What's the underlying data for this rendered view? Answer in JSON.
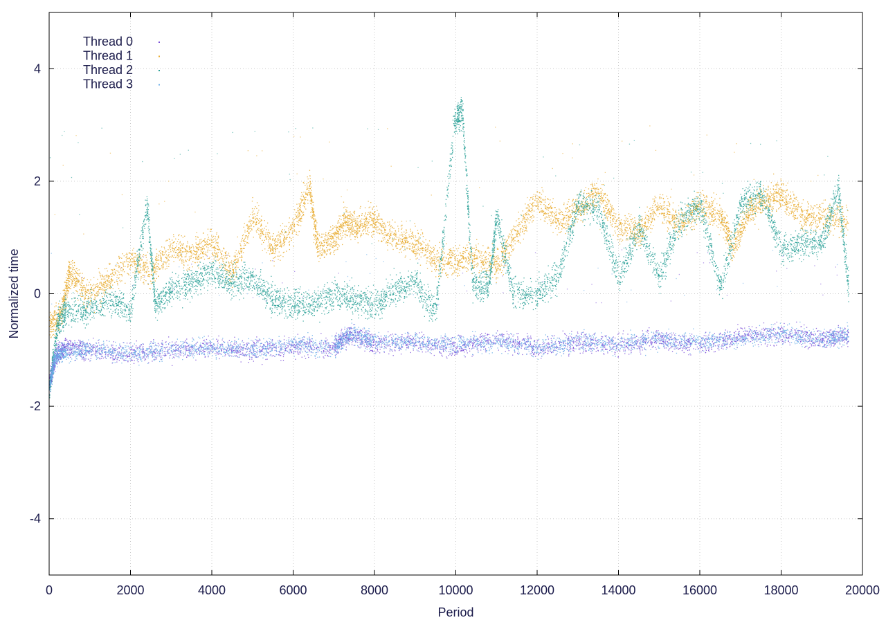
{
  "chart_data": {
    "type": "scatter",
    "title": "",
    "xlabel": "Period",
    "ylabel": "Normalized time",
    "xlim": [
      0,
      20000
    ],
    "ylim": [
      -5,
      5
    ],
    "xticks": [
      0,
      2000,
      4000,
      6000,
      8000,
      10000,
      12000,
      14000,
      16000,
      18000,
      20000
    ],
    "yticks": [
      -4,
      -2,
      0,
      2,
      4
    ],
    "grid": true,
    "legend_position": "top-left",
    "x_max_data": 19650,
    "series": [
      {
        "name": "Thread 0",
        "color": "#7b4fd8",
        "marker": "dot",
        "points_per_segment": 160,
        "noise": 0.09,
        "segments": [
          [
            0,
            -1.6
          ],
          [
            150,
            -1.1
          ],
          [
            400,
            -0.95
          ],
          [
            1000,
            -1.0
          ],
          [
            2000,
            -1.05
          ],
          [
            3000,
            -1.0
          ],
          [
            4000,
            -0.95
          ],
          [
            5000,
            -1.0
          ],
          [
            6000,
            -0.95
          ],
          [
            7000,
            -0.95
          ],
          [
            7400,
            -0.7
          ],
          [
            8000,
            -0.9
          ],
          [
            9000,
            -0.85
          ],
          [
            10000,
            -0.95
          ],
          [
            11000,
            -0.8
          ],
          [
            12000,
            -0.95
          ],
          [
            13000,
            -0.85
          ],
          [
            14000,
            -0.9
          ],
          [
            15000,
            -0.8
          ],
          [
            16000,
            -0.9
          ],
          [
            17000,
            -0.75
          ],
          [
            18000,
            -0.7
          ],
          [
            19000,
            -0.8
          ],
          [
            19650,
            -0.75
          ]
        ]
      },
      {
        "name": "Thread 1",
        "color": "#e8a92a",
        "marker": "dot",
        "points_per_segment": 150,
        "noise": 0.13,
        "segments": [
          [
            0,
            -0.6
          ],
          [
            300,
            -0.3
          ],
          [
            500,
            0.4
          ],
          [
            900,
            0.0
          ],
          [
            1400,
            0.2
          ],
          [
            2000,
            0.6
          ],
          [
            2500,
            0.4
          ],
          [
            3000,
            0.8
          ],
          [
            3500,
            0.7
          ],
          [
            4000,
            0.9
          ],
          [
            4500,
            0.4
          ],
          [
            5000,
            1.4
          ],
          [
            5500,
            0.8
          ],
          [
            6000,
            1.2
          ],
          [
            6400,
            1.9
          ],
          [
            6600,
            0.8
          ],
          [
            7000,
            1.0
          ],
          [
            7300,
            1.3
          ],
          [
            7600,
            1.2
          ],
          [
            8000,
            1.3
          ],
          [
            8500,
            1.0
          ],
          [
            9000,
            0.9
          ],
          [
            9500,
            0.6
          ],
          [
            10000,
            0.6
          ],
          [
            10500,
            0.65
          ],
          [
            11000,
            0.5
          ],
          [
            11500,
            1.1
          ],
          [
            12000,
            1.7
          ],
          [
            12500,
            1.3
          ],
          [
            13000,
            1.5
          ],
          [
            13500,
            1.8
          ],
          [
            14000,
            1.2
          ],
          [
            14500,
            1.1
          ],
          [
            15000,
            1.6
          ],
          [
            15500,
            1.2
          ],
          [
            16000,
            1.6
          ],
          [
            16500,
            1.4
          ],
          [
            16800,
            0.8
          ],
          [
            17200,
            1.5
          ],
          [
            17600,
            1.7
          ],
          [
            18000,
            1.8
          ],
          [
            18500,
            1.4
          ],
          [
            19000,
            1.4
          ],
          [
            19650,
            1.3
          ]
        ]
      },
      {
        "name": "Thread 2",
        "color": "#2aa198",
        "marker": "dot",
        "points_per_segment": 150,
        "noise": 0.13,
        "segments": [
          [
            0,
            -1.7
          ],
          [
            200,
            -0.5
          ],
          [
            400,
            -0.3
          ],
          [
            900,
            -0.3
          ],
          [
            1500,
            -0.1
          ],
          [
            2000,
            -0.3
          ],
          [
            2400,
            1.6
          ],
          [
            2600,
            -0.2
          ],
          [
            3000,
            0.1
          ],
          [
            3500,
            0.2
          ],
          [
            4000,
            0.4
          ],
          [
            4500,
            0.2
          ],
          [
            5000,
            0.3
          ],
          [
            5500,
            -0.1
          ],
          [
            6000,
            -0.2
          ],
          [
            6500,
            -0.2
          ],
          [
            7000,
            0.0
          ],
          [
            7500,
            -0.1
          ],
          [
            8000,
            -0.2
          ],
          [
            8500,
            0.1
          ],
          [
            9000,
            0.2
          ],
          [
            9500,
            -0.3
          ],
          [
            9950,
            3.0
          ],
          [
            10150,
            3.3
          ],
          [
            10400,
            0.2
          ],
          [
            10800,
            0.1
          ],
          [
            11000,
            1.4
          ],
          [
            11400,
            0.0
          ],
          [
            12000,
            0.0
          ],
          [
            12500,
            0.3
          ],
          [
            13000,
            1.6
          ],
          [
            13500,
            1.5
          ],
          [
            14000,
            0.3
          ],
          [
            14500,
            1.2
          ],
          [
            15000,
            0.3
          ],
          [
            15500,
            1.3
          ],
          [
            16000,
            1.6
          ],
          [
            16500,
            0.1
          ],
          [
            17000,
            1.6
          ],
          [
            17500,
            1.8
          ],
          [
            18000,
            0.8
          ],
          [
            18500,
            0.9
          ],
          [
            19000,
            0.9
          ],
          [
            19400,
            1.9
          ],
          [
            19650,
            0.1
          ]
        ]
      },
      {
        "name": "Thread 3",
        "color": "#6aaee8",
        "marker": "dot",
        "points_per_segment": 160,
        "noise": 0.08,
        "segments": [
          [
            0,
            -1.6
          ],
          [
            150,
            -1.1
          ],
          [
            400,
            -1.0
          ],
          [
            1000,
            -1.0
          ],
          [
            2000,
            -1.05
          ],
          [
            3000,
            -1.0
          ],
          [
            4000,
            -0.95
          ],
          [
            5000,
            -1.0
          ],
          [
            6000,
            -0.9
          ],
          [
            7000,
            -0.95
          ],
          [
            7400,
            -0.7
          ],
          [
            8000,
            -0.85
          ],
          [
            9000,
            -0.85
          ],
          [
            10000,
            -0.9
          ],
          [
            11000,
            -0.85
          ],
          [
            12000,
            -0.95
          ],
          [
            13000,
            -0.85
          ],
          [
            14000,
            -0.9
          ],
          [
            15000,
            -0.8
          ],
          [
            16000,
            -0.85
          ],
          [
            17000,
            -0.8
          ],
          [
            18000,
            -0.7
          ],
          [
            19000,
            -0.8
          ],
          [
            19650,
            -0.75
          ]
        ]
      }
    ]
  }
}
